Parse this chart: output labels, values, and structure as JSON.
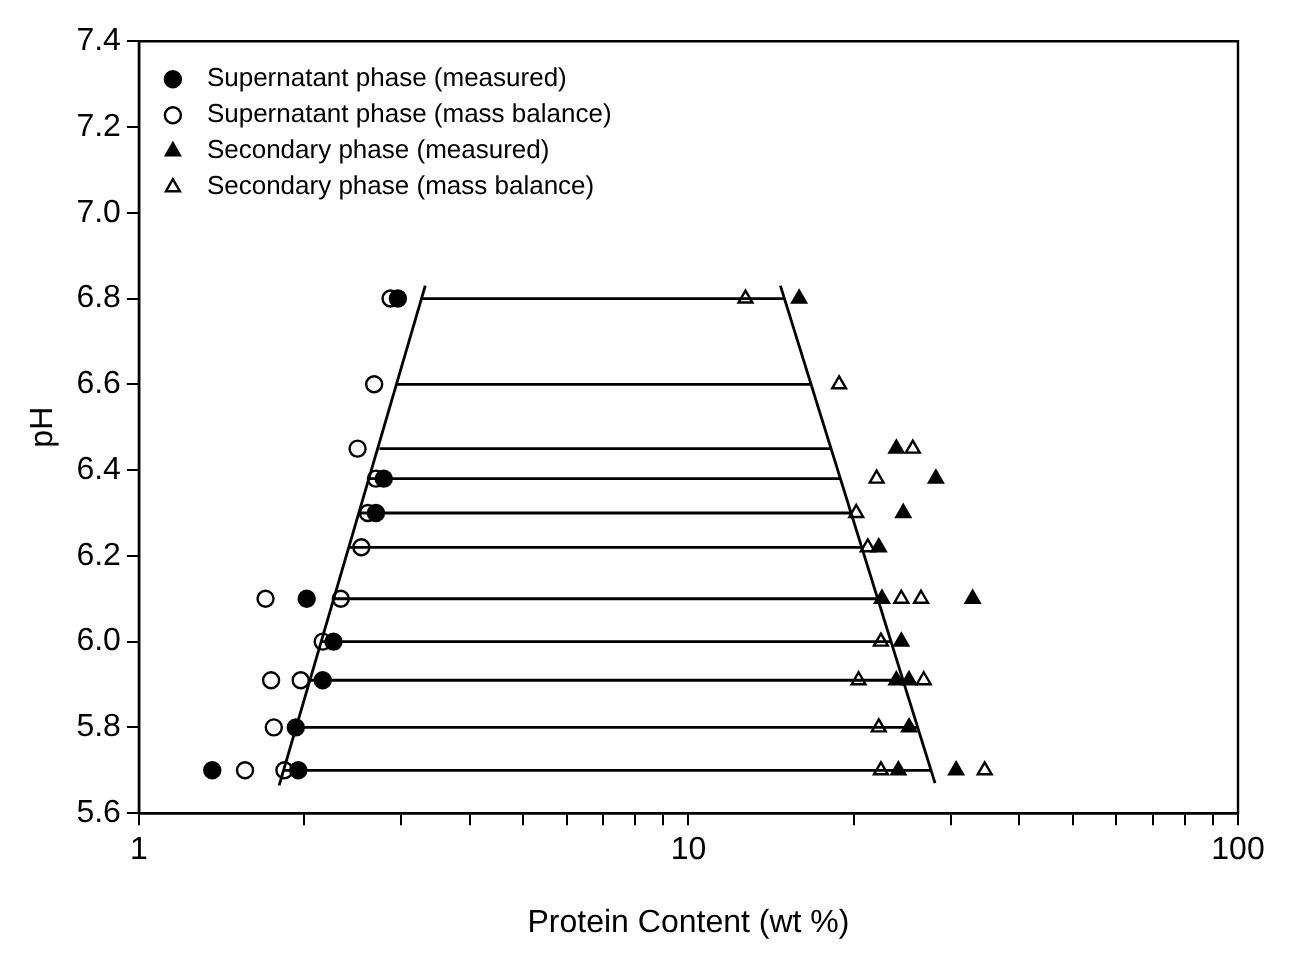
{
  "chart_data": {
    "type": "scatter",
    "xlabel": "Protein Content (wt %)",
    "ylabel": "pH",
    "log": "x",
    "xlim": [
      1,
      100
    ],
    "ylim": [
      5.6,
      7.4
    ],
    "xticks": [
      1,
      {
        "value": 2,
        "label": null
      },
      {
        "value": 3,
        "label": null
      },
      {
        "value": 4,
        "label": null
      },
      {
        "value": 5,
        "label": null
      },
      {
        "value": 6,
        "label": null
      },
      {
        "value": 7,
        "label": null
      },
      {
        "value": 8,
        "label": null
      },
      {
        "value": 9,
        "label": null
      },
      10,
      {
        "value": 20,
        "label": null
      },
      {
        "value": 30,
        "label": null
      },
      {
        "value": 40,
        "label": null
      },
      {
        "value": 50,
        "label": null
      },
      {
        "value": 60,
        "label": null
      },
      {
        "value": 70,
        "label": null
      },
      {
        "value": 80,
        "label": null
      },
      {
        "value": 90,
        "label": null
      },
      100
    ],
    "yticks": [
      5.6,
      5.8,
      {
        "value": 6,
        "label": "6.0"
      },
      6.2,
      6.4,
      6.6,
      6.8,
      {
        "value": 7,
        "label": "7.0"
      },
      7.2,
      7.4
    ],
    "grid": false,
    "legend": "top left",
    "series": [
      {
        "name": "Supernatant phase (measured)",
        "marker": "circle",
        "color": "#000000",
        "x": [
          2.96,
          2.79,
          2.7,
          2.02,
          2.26,
          2.16,
          1.93,
          1.36,
          1.95
        ],
        "values": [
          6.8,
          6.38,
          6.3,
          6.1,
          6.0,
          5.91,
          5.8,
          5.7,
          5.7
        ]
      },
      {
        "name": "Supernatant phase (mass balance)",
        "marker": "circle",
        "color": "#000000",
        "x": [
          2.87,
          2.68,
          2.5,
          2.7,
          2.61,
          2.54,
          1.7,
          2.33,
          2.16,
          1.74,
          1.97,
          1.76,
          1.56,
          1.84
        ],
        "values": [
          6.8,
          6.6,
          6.45,
          6.38,
          6.3,
          6.22,
          6.1,
          6.1,
          6.0,
          5.91,
          5.91,
          5.8,
          5.7,
          5.7
        ]
      },
      {
        "name": "Secondary phase (measured)",
        "marker": "triangle",
        "color": "#000000",
        "x": [
          15.9,
          23.9,
          28.2,
          24.6,
          22.2,
          22.5,
          32.9,
          24.4,
          23.9,
          25.2,
          25.2,
          24.1,
          30.7
        ],
        "values": [
          6.8,
          6.45,
          6.38,
          6.3,
          6.22,
          6.1,
          6.1,
          6.0,
          5.91,
          5.91,
          5.8,
          5.7,
          5.7
        ]
      },
      {
        "name": "Secondary phase (mass balance)",
        "marker": "triangle",
        "color": "#000000",
        "x": [
          12.7,
          18.8,
          25.6,
          22.0,
          20.2,
          21.2,
          24.4,
          26.5,
          22.4,
          20.4,
          26.8,
          22.2,
          22.4,
          34.6
        ],
        "values": [
          6.8,
          6.6,
          6.45,
          6.38,
          6.3,
          6.22,
          6.1,
          6.1,
          6.0,
          5.91,
          5.91,
          5.8,
          5.7,
          5.7
        ]
      },
      {
        "type": "line",
        "marker": "none",
        "color": "#000000",
        "x": [
          1.8,
          3.32
        ],
        "values": [
          5.665,
          6.83
        ]
      },
      {
        "type": "line",
        "marker": "none",
        "color": "#000000",
        "x": [
          28.1,
          14.7
        ],
        "values": [
          5.67,
          6.83
        ]
      },
      {
        "type": "line",
        "marker": "none",
        "color": "#000000",
        "x": [
          3.27,
          14.9
        ],
        "values": [
          6.8,
          6.8
        ]
      },
      {
        "type": "line",
        "marker": "none",
        "color": "#000000",
        "x": [
          2.94,
          16.7
        ],
        "values": [
          6.6,
          6.6
        ]
      },
      {
        "type": "line",
        "marker": "none",
        "color": "#000000",
        "x": [
          2.74,
          18.2
        ],
        "values": [
          6.45,
          6.45
        ]
      },
      {
        "type": "line",
        "marker": "none",
        "color": "#000000",
        "x": [
          2.62,
          18.9
        ],
        "values": [
          6.38,
          6.38
        ]
      },
      {
        "type": "line",
        "marker": "none",
        "color": "#000000",
        "x": [
          2.51,
          19.8
        ],
        "values": [
          6.3,
          6.3
        ]
      },
      {
        "type": "line",
        "marker": "none",
        "color": "#000000",
        "x": [
          2.41,
          20.7
        ],
        "values": [
          6.22,
          6.22
        ]
      },
      {
        "type": "line",
        "marker": "none",
        "color": "#000000",
        "x": [
          2.26,
          22.1
        ],
        "values": [
          6.1,
          6.1
        ]
      },
      {
        "type": "line",
        "marker": "none",
        "color": "#000000",
        "x": [
          2.14,
          23.4
        ],
        "values": [
          6.0,
          6.0
        ]
      },
      {
        "type": "line",
        "marker": "none",
        "color": "#000000",
        "x": [
          2.05,
          24.6
        ],
        "values": [
          5.91,
          5.91
        ]
      },
      {
        "type": "line",
        "marker": "none",
        "color": "#000000",
        "x": [
          1.93,
          26.1
        ],
        "values": [
          5.8,
          5.8
        ]
      },
      {
        "type": "line",
        "marker": "none",
        "color": "#000000",
        "x": [
          1.83,
          27.7
        ],
        "values": [
          5.7,
          5.7
        ]
      }
    ]
  }
}
